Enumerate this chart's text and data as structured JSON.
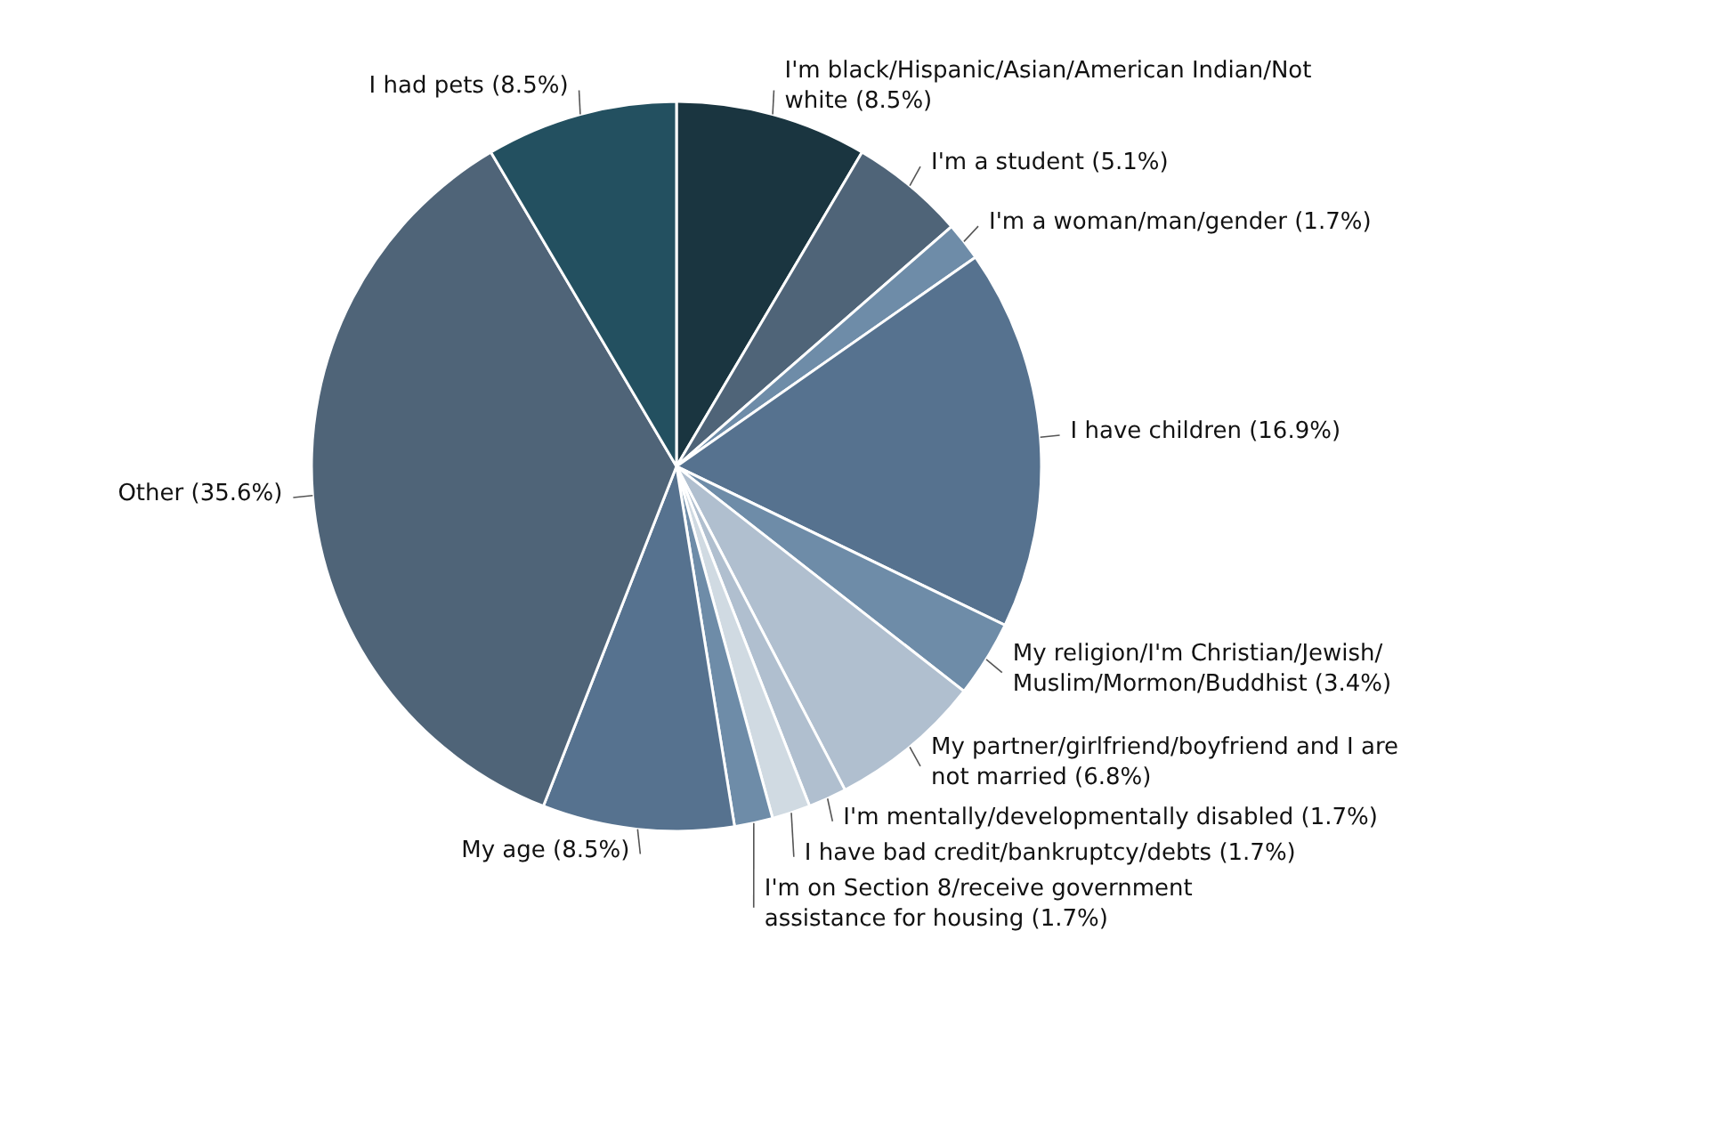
{
  "chart_data": {
    "type": "pie",
    "categories": [
      "I'm black/Hispanic/Asian/American Indian/Not white",
      "I'm a student",
      "I'm a woman/man/gender",
      "I have children",
      "My religion/I'm Christian/Jewish/ Muslim/Mormon/Buddhist",
      "My partner/girlfriend/boyfriend and I are not married",
      "I'm mentally/developmentally disabled",
      "I have bad credit/bankruptcy/debts",
      "I'm on Section 8/receive government assistance for housing",
      "My age",
      "Other",
      "I had pets"
    ],
    "values": [
      8.5,
      5.1,
      1.7,
      16.9,
      3.4,
      6.8,
      1.7,
      1.7,
      1.7,
      8.5,
      35.6,
      8.5
    ],
    "value_labels": [
      "(8.5%)",
      "(5.1%)",
      "(1.7%)",
      "(16.9%)",
      "(3.4%)",
      "(6.8%)",
      "(1.7%)",
      "(1.7%)",
      "(1.7%)",
      "(8.5%)",
      "(35.6%)",
      "(8.5%)"
    ],
    "colors": [
      "#1a3540",
      "#4f6478",
      "#6e8ca8",
      "#56728f",
      "#6e8ca8",
      "#b0bfcf",
      "#b0bfcf",
      "#d0dae2",
      "#6e8ca8",
      "#56728f",
      "#4f6478",
      "#235060"
    ]
  }
}
